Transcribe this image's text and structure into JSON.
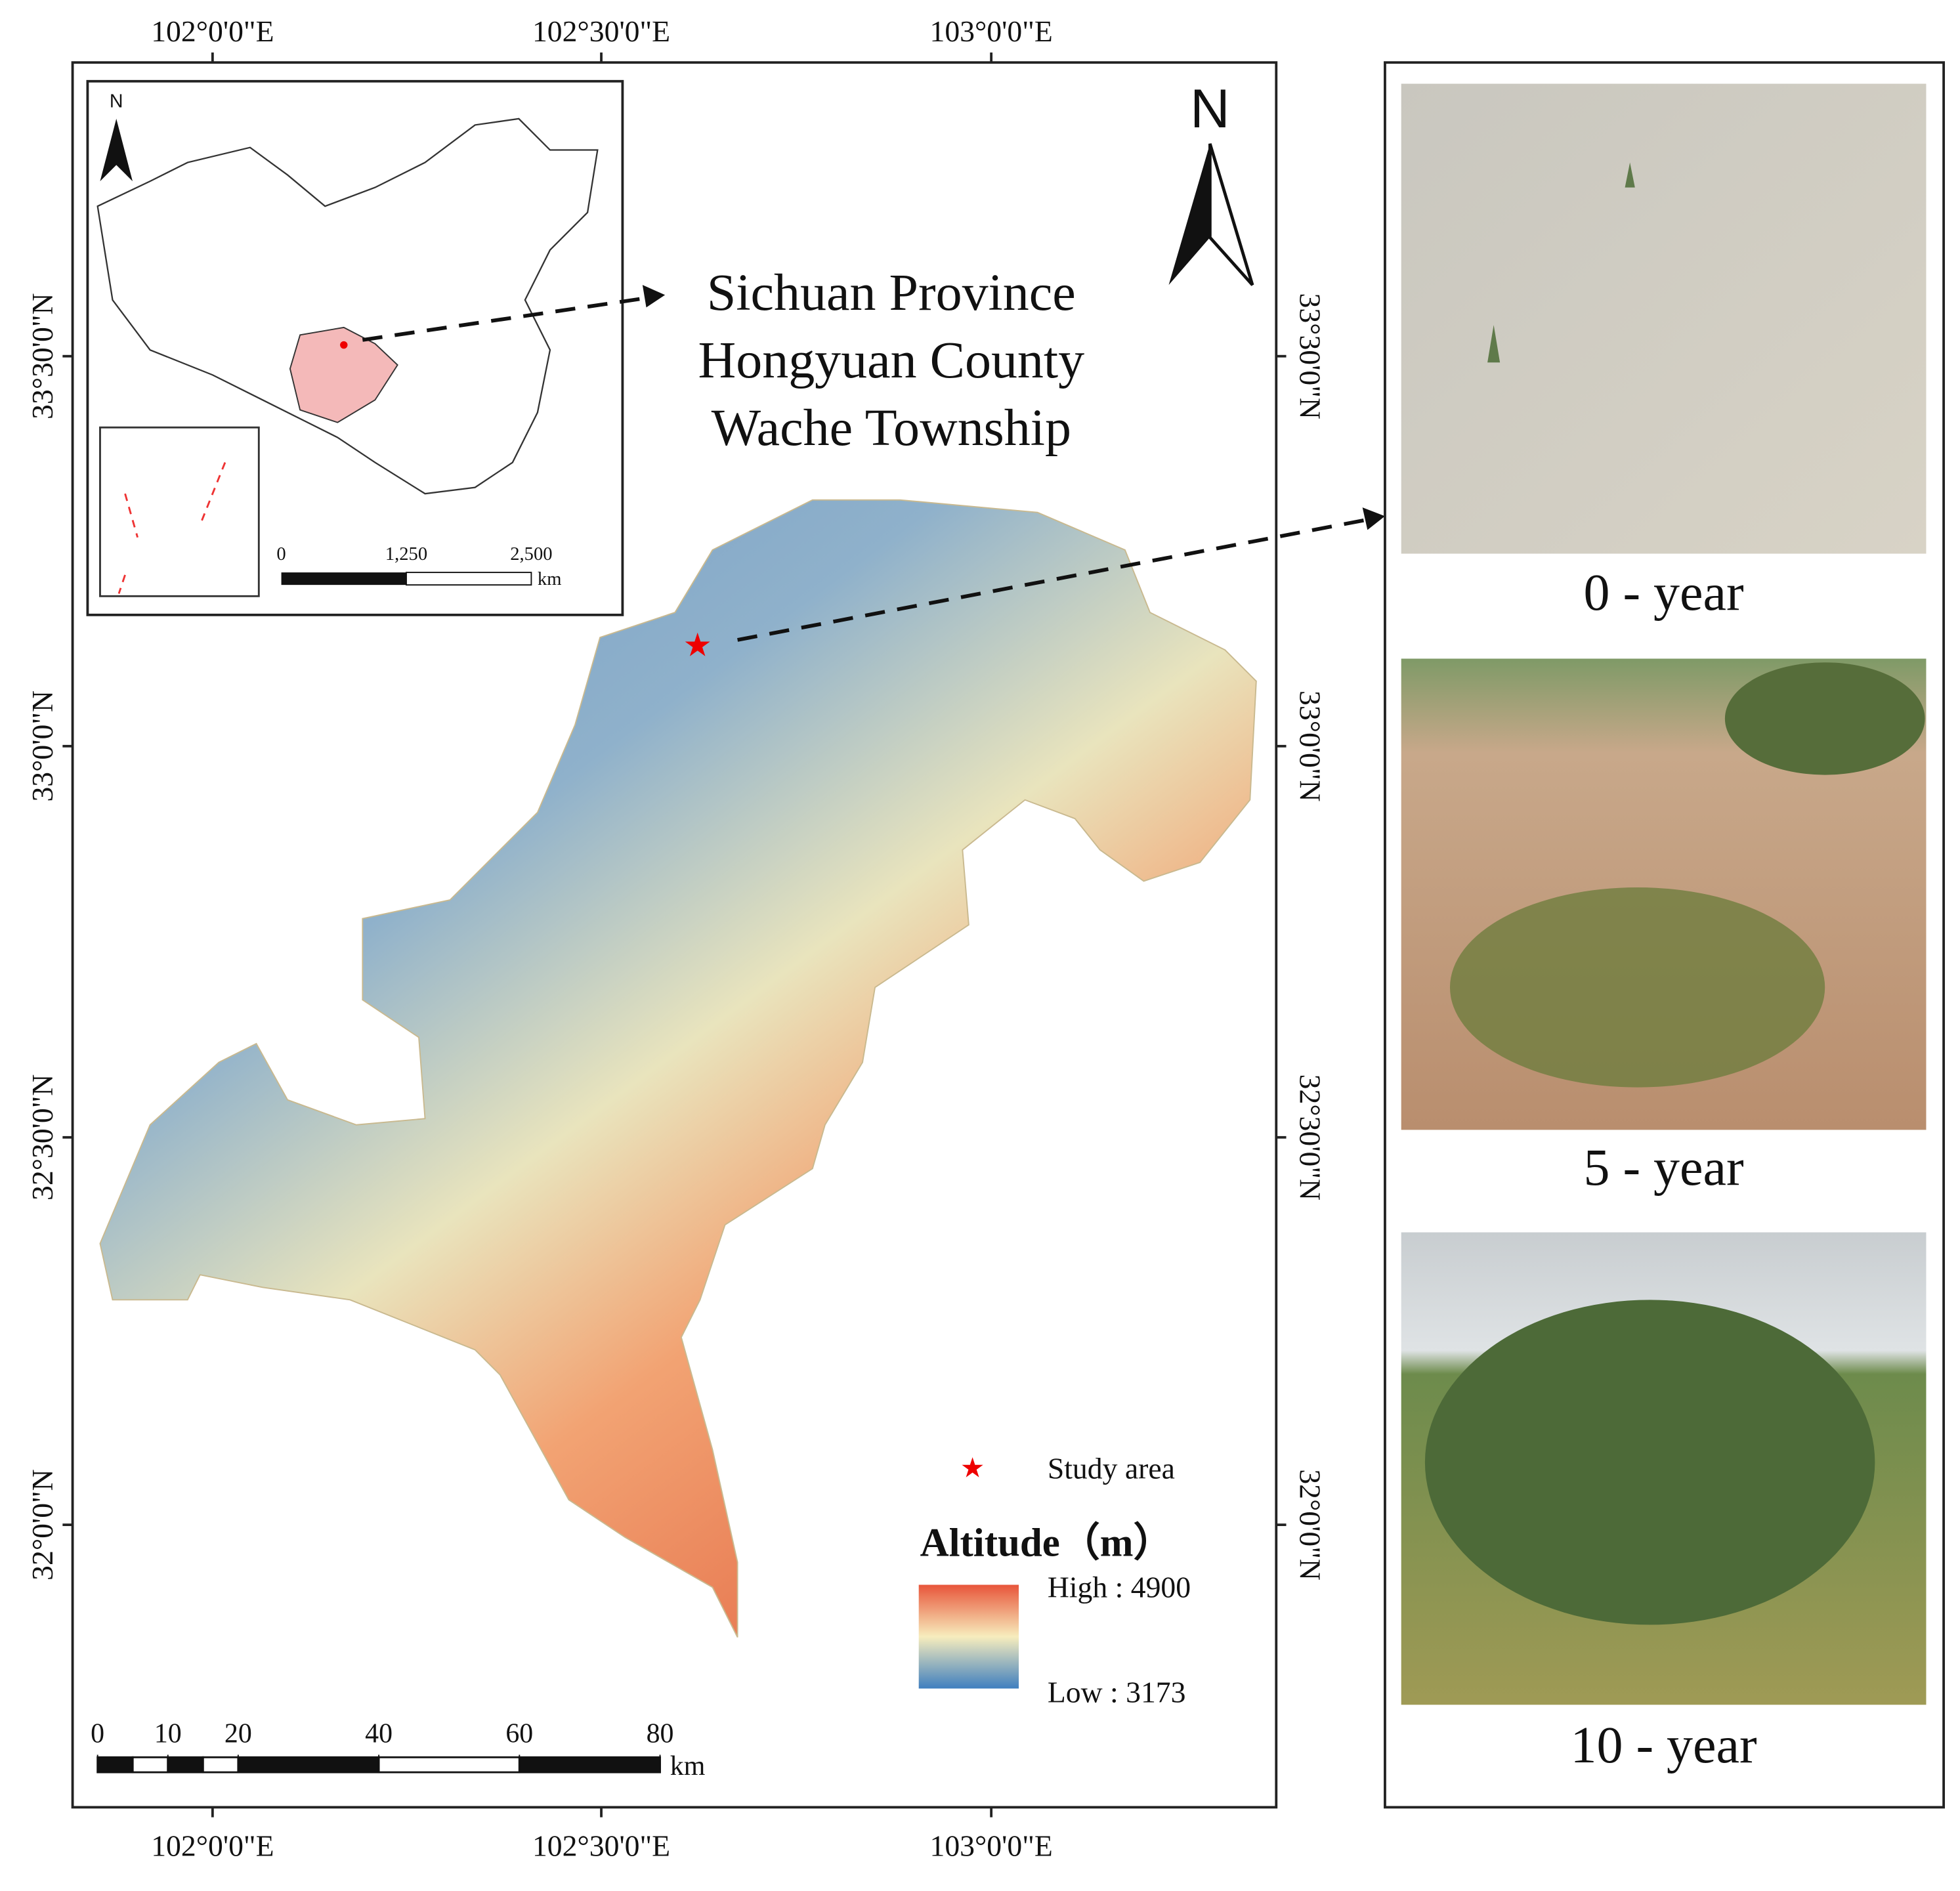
{
  "graticule": {
    "top": [
      "102°0'0\"E",
      "102°30'0\"E",
      "103°0'0\"E"
    ],
    "bottom": [
      "102°0'0\"E",
      "102°30'0\"E",
      "103°0'0\"E"
    ],
    "left": [
      "33°30'0\"N",
      "33°0'0\"N",
      "32°30'0\"N",
      "32°0'0\"N"
    ],
    "right": [
      "33°30'0\"N",
      "33°0'0\"N",
      "32°30'0\"N",
      "32°0'0\"N"
    ]
  },
  "inset": {
    "north": "N",
    "scale_labels": [
      "0",
      "1,250",
      "2,500"
    ],
    "scale_unit": "km"
  },
  "location": [
    "Sichuan Province",
    "Hongyuan County",
    "Wache Township"
  ],
  "north_arrow": "N",
  "legend": {
    "study_area": "Study area",
    "title": "Altitude（m）",
    "high": "High : 4900",
    "low": "Low : 3173"
  },
  "scale_bar": {
    "ticks": [
      0,
      10,
      20,
      40,
      60,
      80
    ],
    "unit": "km"
  },
  "photos": [
    "0 - year",
    "5 - year",
    "10 - year"
  ]
}
